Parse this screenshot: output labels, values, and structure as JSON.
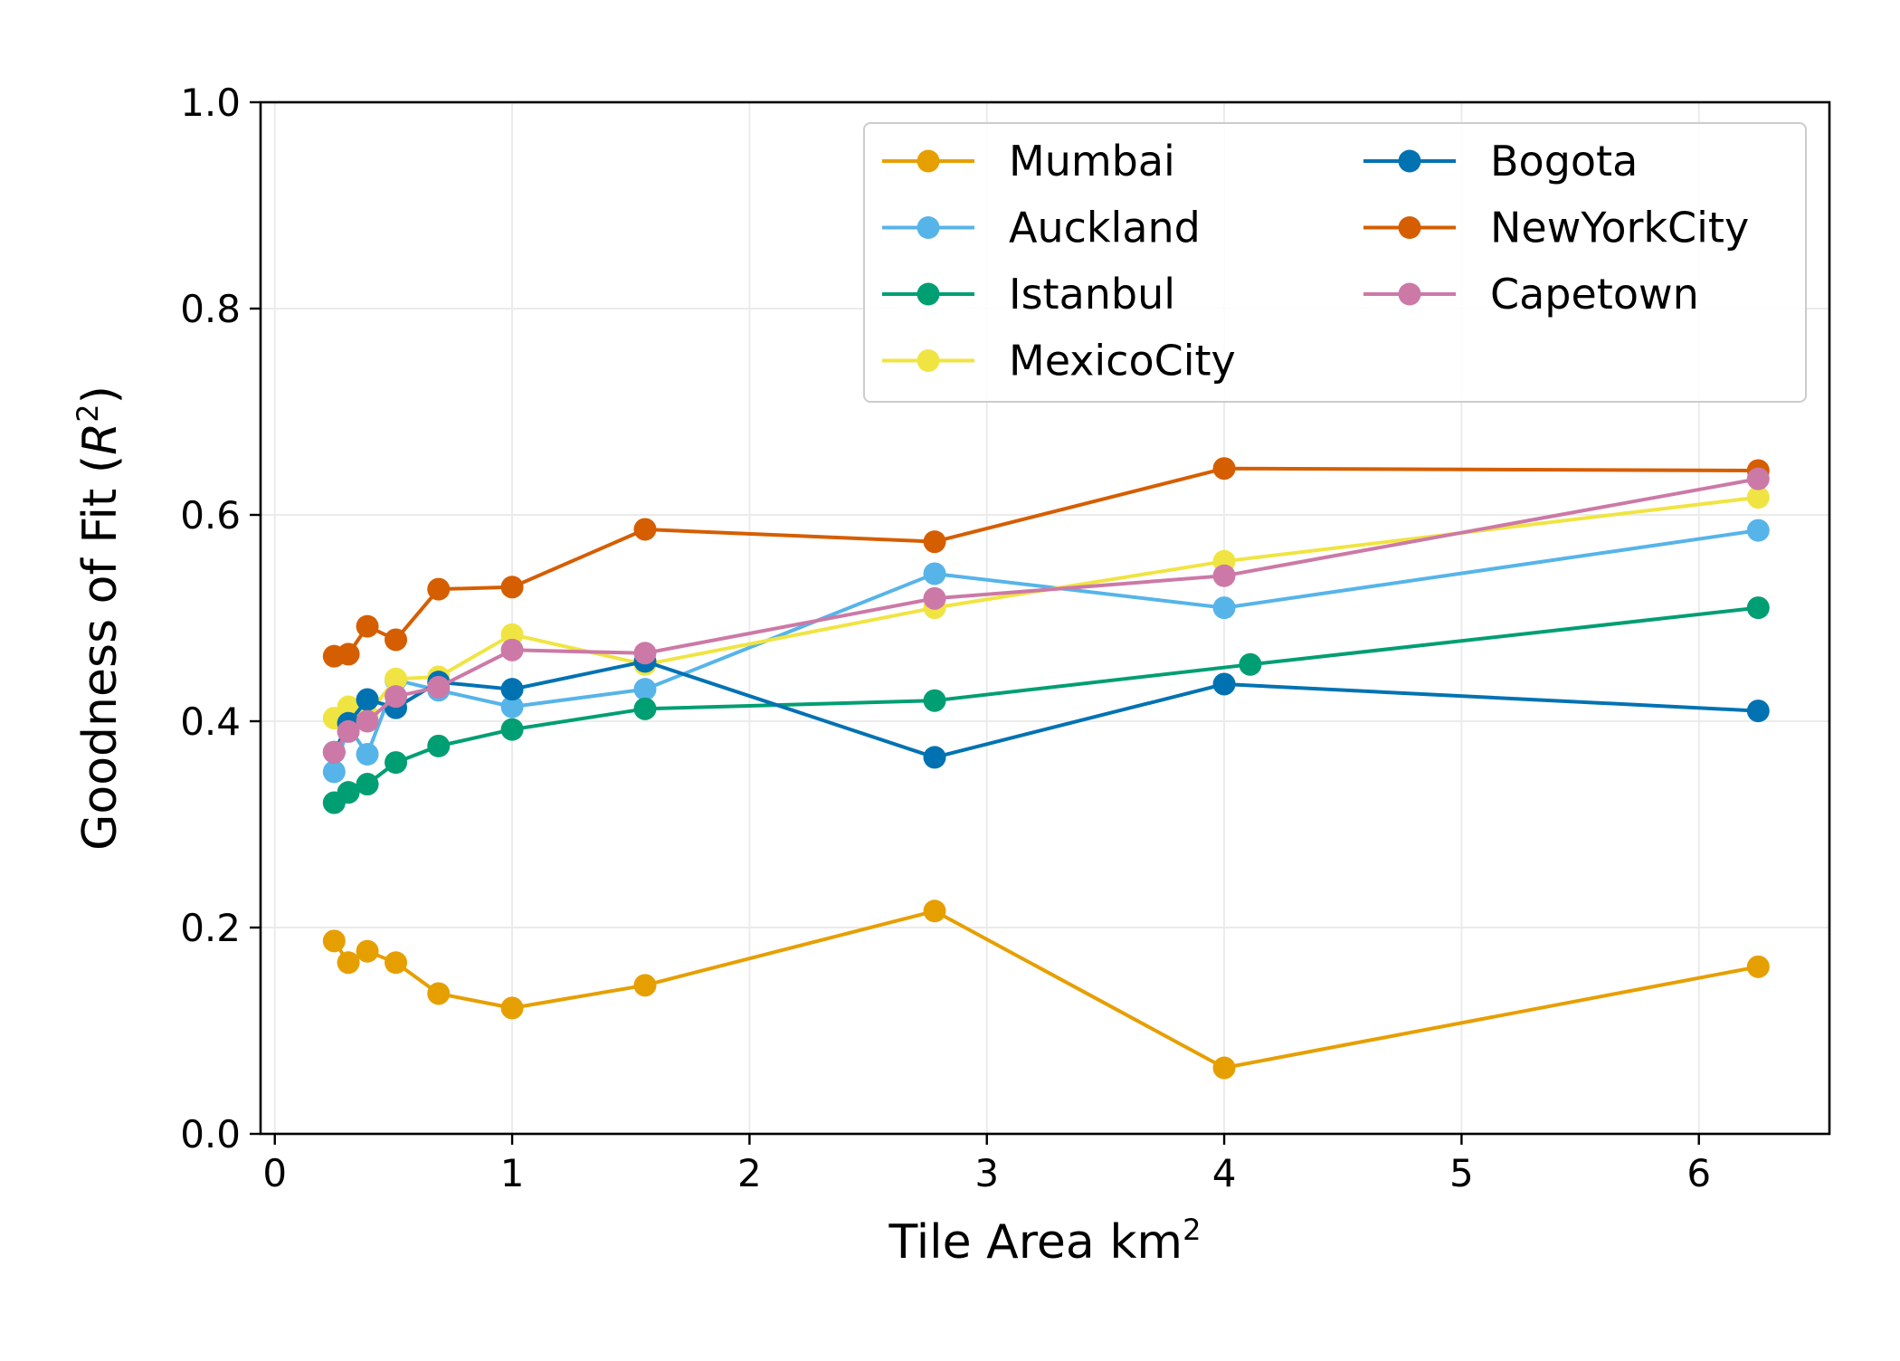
{
  "chart_data": {
    "type": "line",
    "xlabel_main": "Tile Area km",
    "xlabel_sup": "2",
    "ylabel_main": "Goodness of Fit (",
    "ylabel_italic": "R",
    "ylabel_sup": "2",
    "ylabel_close": ")",
    "xlim": [
      -0.06,
      6.55
    ],
    "ylim": [
      0.0,
      1.0
    ],
    "x_ticks": [
      0,
      1,
      2,
      3,
      4,
      5,
      6
    ],
    "x_tick_labels": [
      "0",
      "1",
      "2",
      "3",
      "4",
      "5",
      "6"
    ],
    "y_ticks": [
      0.0,
      0.2,
      0.4,
      0.6,
      0.8,
      1.0
    ],
    "y_tick_labels": [
      "0.0",
      "0.2",
      "0.4",
      "0.6",
      "0.8",
      "1.0"
    ],
    "grid": true,
    "legend_position": "top-right",
    "legend_columns": 2,
    "series": [
      {
        "name": "Mumbai",
        "color": "#E69F00",
        "x": [
          0.25,
          0.31,
          0.39,
          0.51,
          0.69,
          1.0,
          1.56,
          2.78,
          4.0,
          6.25
        ],
        "y": [
          0.187,
          0.166,
          0.177,
          0.166,
          0.136,
          0.122,
          0.144,
          0.216,
          0.064,
          0.162
        ]
      },
      {
        "name": "Auckland",
        "color": "#56B4E9",
        "x": [
          0.25,
          0.31,
          0.39,
          0.51,
          0.69,
          1.0,
          1.56,
          2.78,
          4.0,
          6.25
        ],
        "y": [
          0.351,
          0.395,
          0.368,
          0.44,
          0.43,
          0.414,
          0.431,
          0.543,
          0.51,
          0.585
        ]
      },
      {
        "name": "Istanbul",
        "color": "#009E73",
        "x": [
          0.25,
          0.31,
          0.39,
          0.51,
          0.69,
          1.0,
          1.56,
          2.78,
          4.11,
          6.25
        ],
        "y": [
          0.321,
          0.331,
          0.339,
          0.36,
          0.376,
          0.392,
          0.412,
          0.42,
          0.455,
          0.51
        ]
      },
      {
        "name": "MexicoCity",
        "color": "#F0E442",
        "x": [
          0.25,
          0.31,
          0.39,
          0.51,
          0.69,
          1.0,
          1.56,
          2.78,
          4.0,
          6.25
        ],
        "y": [
          0.403,
          0.414,
          0.406,
          0.441,
          0.443,
          0.484,
          0.455,
          0.51,
          0.555,
          0.617
        ]
      },
      {
        "name": "Bogota",
        "color": "#0072B2",
        "x": [
          0.25,
          0.31,
          0.39,
          0.51,
          0.69,
          1.0,
          1.56,
          2.78,
          4.0,
          6.25
        ],
        "y": [
          0.37,
          0.398,
          0.421,
          0.413,
          0.438,
          0.431,
          0.458,
          0.365,
          0.436,
          0.41
        ]
      },
      {
        "name": "NewYorkCity",
        "color": "#D55E00",
        "x": [
          0.25,
          0.31,
          0.39,
          0.51,
          0.69,
          1.0,
          1.56,
          2.78,
          4.0,
          6.25
        ],
        "y": [
          0.463,
          0.465,
          0.492,
          0.479,
          0.528,
          0.53,
          0.586,
          0.574,
          0.645,
          0.643
        ]
      },
      {
        "name": "Capetown",
        "color": "#CC79A7",
        "x": [
          0.25,
          0.31,
          0.39,
          0.51,
          0.69,
          1.0,
          1.56,
          2.78,
          4.0,
          6.25
        ],
        "y": [
          0.37,
          0.39,
          0.4,
          0.424,
          0.433,
          0.469,
          0.466,
          0.519,
          0.541,
          0.635
        ]
      }
    ]
  }
}
